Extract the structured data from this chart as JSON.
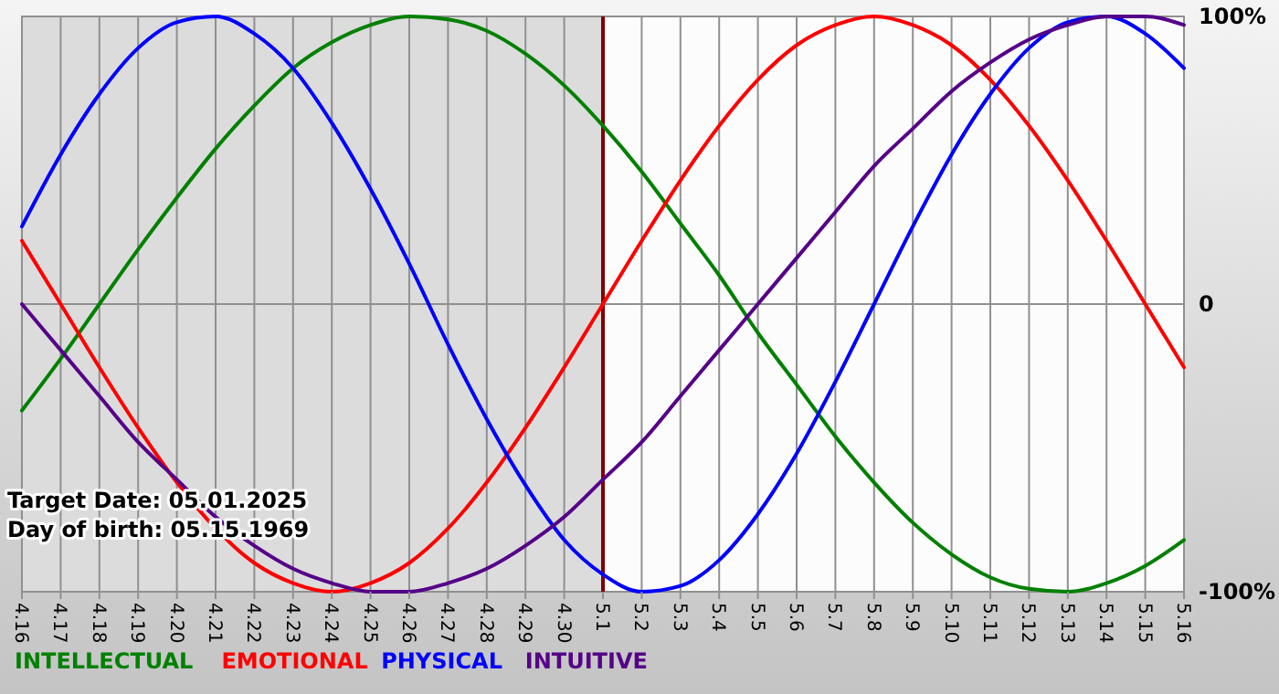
{
  "chart_data": {
    "type": "line",
    "categories": [
      "4.16",
      "4.17",
      "4.18",
      "4.19",
      "4.20",
      "4.21",
      "4.22",
      "4.23",
      "4.24",
      "4.25",
      "4.26",
      "4.27",
      "4.28",
      "4.29",
      "4.30",
      "5.1",
      "5.2",
      "5.3",
      "5.4",
      "5.5",
      "5.6",
      "5.7",
      "5.8",
      "5.9",
      "5.10",
      "5.11",
      "5.12",
      "5.13",
      "5.14",
      "5.15",
      "5.16"
    ],
    "series": [
      {
        "name": "INTELLECTUAL",
        "color": "#008000",
        "values": [
          -37,
          -19,
          0,
          19,
          37,
          54,
          69,
          82,
          91,
          97,
          100,
          99,
          95,
          87,
          76,
          62,
          46,
          28,
          10,
          -10,
          -28,
          -46,
          -62,
          -76,
          -87,
          -95,
          -99,
          -100,
          -97,
          -91,
          -82
        ]
      },
      {
        "name": "EMOTIONAL",
        "color": "#ff0000",
        "values": [
          22,
          0,
          -22,
          -43,
          -62,
          -78,
          -90,
          -97,
          -100,
          -97,
          -90,
          -78,
          -62,
          -43,
          -22,
          0,
          22,
          43,
          62,
          78,
          90,
          97,
          100,
          97,
          90,
          78,
          62,
          43,
          22,
          0,
          -22
        ]
      },
      {
        "name": "PHYSICAL",
        "color": "#0000ff",
        "values": [
          27,
          52,
          73,
          89,
          98,
          100,
          94,
          82,
          63,
          40,
          14,
          -14,
          -40,
          -63,
          -82,
          -94,
          -100,
          -98,
          -89,
          -73,
          -52,
          -27,
          0,
          27,
          52,
          73,
          89,
          98,
          100,
          94,
          82
        ]
      },
      {
        "name": "INTUITIVE",
        "color": "#550088",
        "values": [
          0,
          -16,
          -32,
          -48,
          -61,
          -74,
          -84,
          -92,
          -97,
          -100,
          -100,
          -97,
          -92,
          -84,
          -74,
          -61,
          -48,
          -32,
          -16,
          0,
          16,
          32,
          48,
          61,
          74,
          84,
          92,
          97,
          100,
          100,
          97
        ]
      }
    ],
    "ylim": [
      -100,
      100
    ],
    "yticks": [
      {
        "value": 100,
        "label": "100%"
      },
      0,
      {
        "value": -100,
        "label": "-100%"
      }
    ],
    "grid": true,
    "legend": "bottom left",
    "marker": "none",
    "line_style": "solid",
    "ref_lines": [
      {
        "axis": "x",
        "value": "5.1",
        "color": "#800000"
      }
    ],
    "bands": [
      {
        "axis": "x",
        "from": "4.16",
        "to": "5.1",
        "color": "#dcdcdc"
      }
    ],
    "annotations": [
      "Target Date: 05.01.2025",
      "Day of birth: 05.15.1969"
    ]
  }
}
